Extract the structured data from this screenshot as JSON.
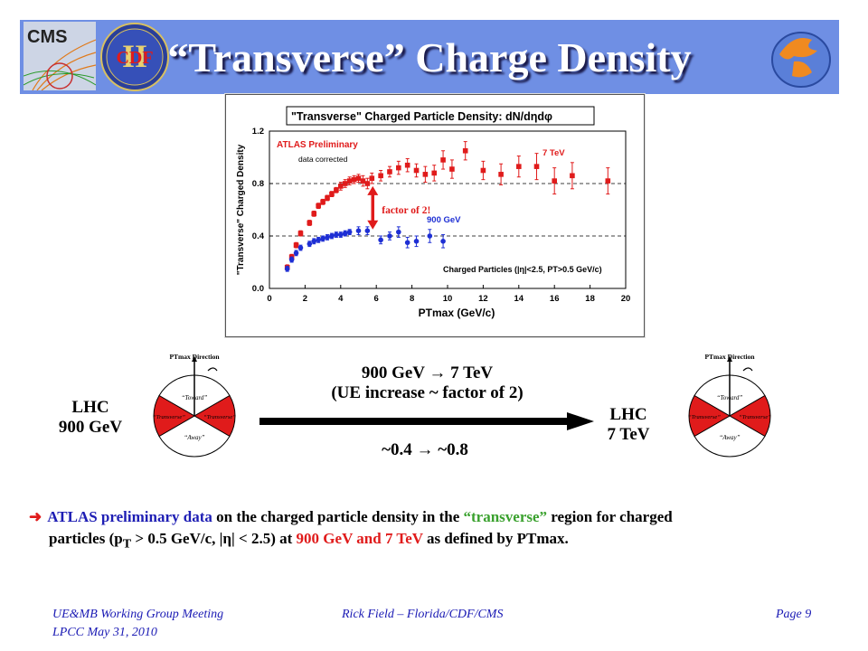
{
  "header": {
    "title": "“Transverse” Charge Density",
    "logo_cms_text": "CMS",
    "logo_cdf_text": "CDF",
    "logo_cdf_numeral": "II"
  },
  "chart_data": {
    "type": "scatter",
    "title": "\"Transverse\" Charged Particle Density: dN/dηdφ",
    "xlabel": "PTmax (GeV/c)",
    "ylabel": "\"Transverse\" Charged Density",
    "xlim": [
      0,
      20
    ],
    "ylim": [
      0,
      1.2
    ],
    "x_ticks": [
      0,
      2,
      4,
      6,
      8,
      10,
      12,
      14,
      16,
      18,
      20
    ],
    "y_ticks": [
      0.0,
      0.4,
      0.8,
      1.2
    ],
    "dashed_lines_y": [
      0.4,
      0.8
    ],
    "annotations": {
      "atlas": "ATLAS Preliminary",
      "corrected": "data corrected",
      "label_7tev": "7 TeV",
      "label_900gev": "900 GeV",
      "factor": "factor of 2!",
      "cuts": "Charged Particles (|η|<2.5, PT>0.5 GeV/c)"
    },
    "series": [
      {
        "name": "7 TeV",
        "color": "#e01b1b",
        "marker": "square",
        "points": [
          [
            1.0,
            0.16,
            0.02
          ],
          [
            1.25,
            0.24,
            0.02
          ],
          [
            1.5,
            0.33,
            0.02
          ],
          [
            1.75,
            0.42,
            0.02
          ],
          [
            2.25,
            0.5,
            0.02
          ],
          [
            2.5,
            0.57,
            0.02
          ],
          [
            2.75,
            0.63,
            0.02
          ],
          [
            3.0,
            0.66,
            0.02
          ],
          [
            3.25,
            0.69,
            0.02
          ],
          [
            3.5,
            0.72,
            0.02
          ],
          [
            3.75,
            0.75,
            0.02
          ],
          [
            4.0,
            0.78,
            0.03
          ],
          [
            4.25,
            0.8,
            0.03
          ],
          [
            4.5,
            0.82,
            0.03
          ],
          [
            4.75,
            0.83,
            0.03
          ],
          [
            5.0,
            0.84,
            0.03
          ],
          [
            5.25,
            0.82,
            0.04
          ],
          [
            5.5,
            0.8,
            0.04
          ],
          [
            5.75,
            0.84,
            0.04
          ],
          [
            6.25,
            0.86,
            0.04
          ],
          [
            6.75,
            0.89,
            0.04
          ],
          [
            7.25,
            0.92,
            0.05
          ],
          [
            7.75,
            0.94,
            0.05
          ],
          [
            8.25,
            0.9,
            0.05
          ],
          [
            8.75,
            0.87,
            0.06
          ],
          [
            9.25,
            0.88,
            0.06
          ],
          [
            9.75,
            0.98,
            0.07
          ],
          [
            10.25,
            0.91,
            0.07
          ],
          [
            11.0,
            1.05,
            0.07
          ],
          [
            12.0,
            0.9,
            0.07
          ],
          [
            13.0,
            0.87,
            0.08
          ],
          [
            14.0,
            0.93,
            0.08
          ],
          [
            15.0,
            0.93,
            0.1
          ],
          [
            16.0,
            0.82,
            0.1
          ],
          [
            17.0,
            0.86,
            0.1
          ],
          [
            19.0,
            0.82,
            0.1
          ]
        ]
      },
      {
        "name": "900 GeV",
        "color": "#1e2fd4",
        "marker": "circle",
        "points": [
          [
            1.0,
            0.15,
            0.02
          ],
          [
            1.25,
            0.22,
            0.02
          ],
          [
            1.5,
            0.27,
            0.02
          ],
          [
            1.75,
            0.31,
            0.02
          ],
          [
            2.25,
            0.34,
            0.02
          ],
          [
            2.5,
            0.36,
            0.02
          ],
          [
            2.75,
            0.37,
            0.02
          ],
          [
            3.0,
            0.38,
            0.02
          ],
          [
            3.25,
            0.39,
            0.02
          ],
          [
            3.5,
            0.4,
            0.02
          ],
          [
            3.75,
            0.41,
            0.02
          ],
          [
            4.0,
            0.41,
            0.02
          ],
          [
            4.25,
            0.42,
            0.02
          ],
          [
            4.5,
            0.43,
            0.02
          ],
          [
            5.0,
            0.44,
            0.03
          ],
          [
            5.5,
            0.44,
            0.03
          ],
          [
            6.25,
            0.37,
            0.03
          ],
          [
            6.75,
            0.4,
            0.03
          ],
          [
            7.25,
            0.43,
            0.04
          ],
          [
            7.75,
            0.35,
            0.04
          ],
          [
            8.25,
            0.36,
            0.04
          ],
          [
            9.0,
            0.4,
            0.05
          ],
          [
            9.75,
            0.36,
            0.05
          ]
        ]
      }
    ]
  },
  "diagram": {
    "pie_direction": "PTmax Direction",
    "pie_toward": "“Toward”",
    "pie_transverse": "“Transverse”",
    "pie_away": "“Away”",
    "left_label_1": "LHC",
    "left_label_2": "900 GeV",
    "right_label_1": "LHC",
    "right_label_2": "7 TeV",
    "arrow_top_1": "900 GeV → 7 TeV",
    "arrow_top_2": "(UE increase ~ factor of 2)",
    "arrow_bottom": "~0.4 → ~0.8"
  },
  "bullet": {
    "part1": "ATLAS preliminary data",
    "part2": " on the charged particle density in the ",
    "part3": "“transverse”",
    "part4": " region for charged",
    "line2a": "particles (p",
    "line2_sub": "T",
    "line2b": " > 0.5 GeV/c, |η| < 2.5) at ",
    "line2c": "900 GeV",
    "line2d": " and ",
    "line2e": "7 TeV",
    "line2f": " as defined by PTmax."
  },
  "footer": {
    "left1": "UE&MB Working Group Meeting",
    "left2": "LPCC  May 31, 2010",
    "center": "Rick Field – Florida/CDF/CMS",
    "right": "Page 9"
  },
  "colors": {
    "header_bg": "#6f8fe4",
    "red": "#e01b1b",
    "blue": "#1e2fd4",
    "green": "#3aa12e"
  }
}
